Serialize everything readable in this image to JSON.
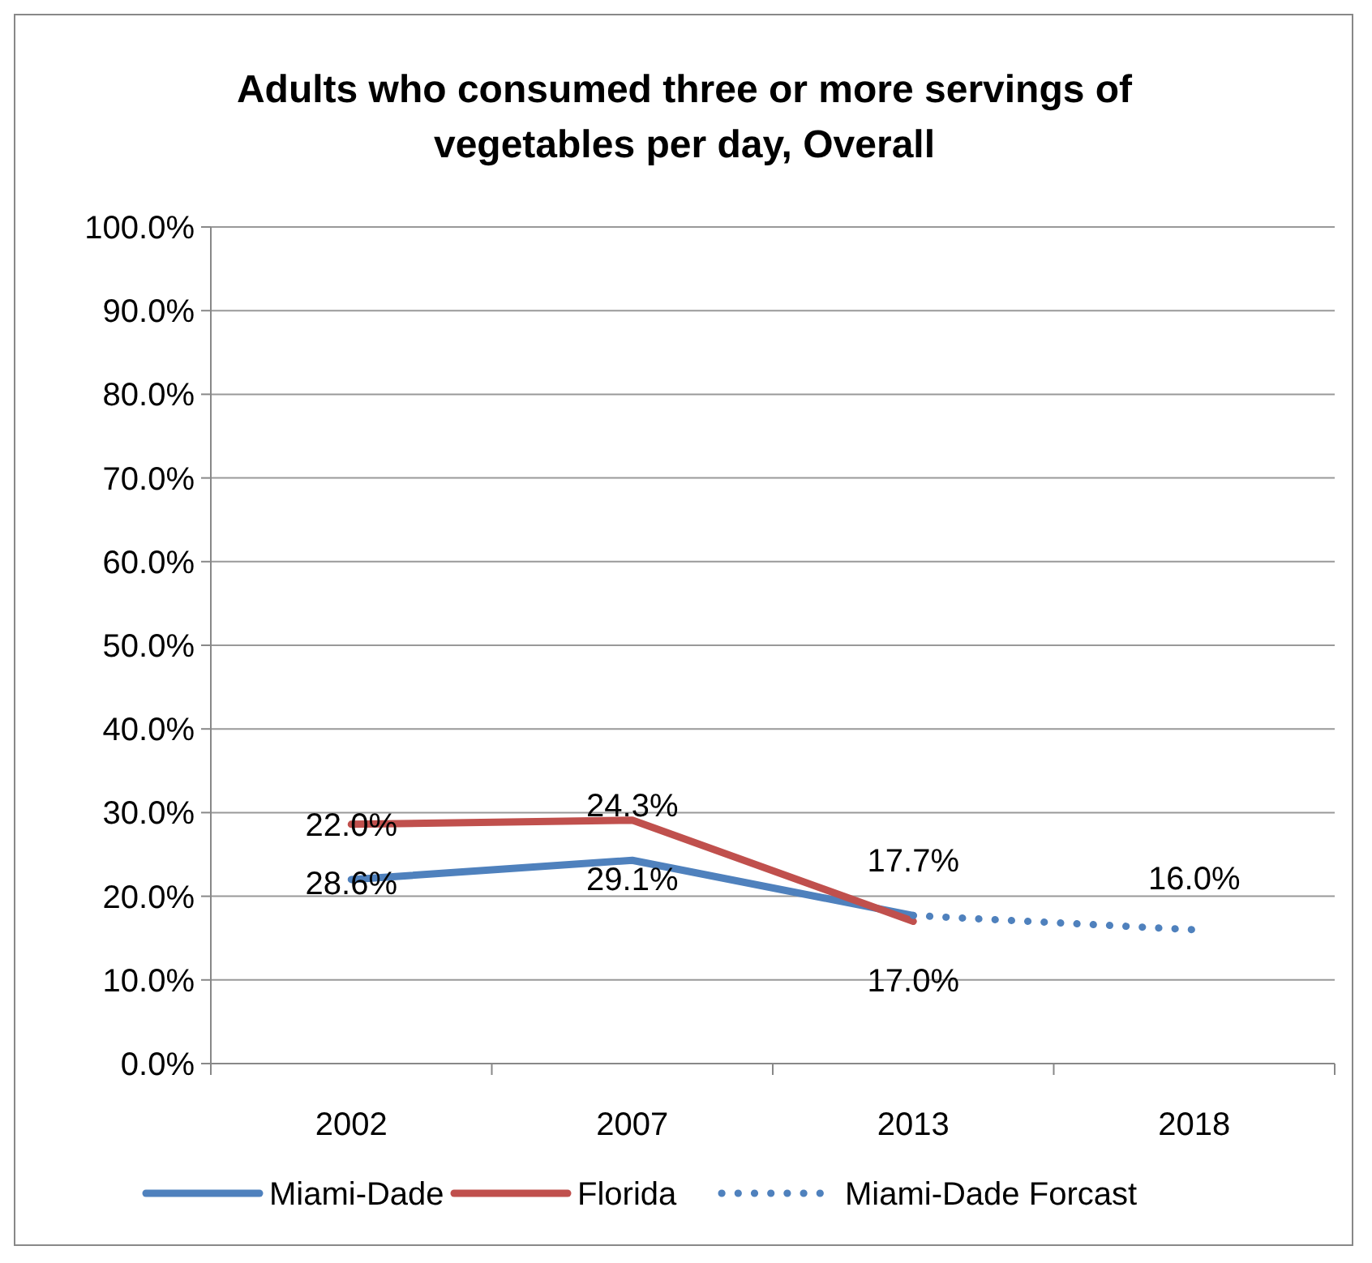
{
  "chart_data": {
    "type": "line",
    "title": "Adults who consumed three or more servings of vegetables per day, Overall",
    "categories": [
      "2002",
      "2007",
      "2013",
      "2018"
    ],
    "series": [
      {
        "name": "Miami-Dade",
        "color": "#4f81bd",
        "values": [
          22.0,
          24.3,
          17.7,
          null
        ],
        "value_labels": [
          "22.0%",
          "24.3%",
          "17.7%",
          null
        ]
      },
      {
        "name": "Florida",
        "color": "#c0504d",
        "values": [
          28.6,
          29.1,
          17.0,
          null
        ],
        "value_labels": [
          "28.6%",
          "29.1%",
          "17.0%",
          null
        ]
      },
      {
        "name": "Miami-Dade Forcast",
        "color": "#4f81bd",
        "values": [
          null,
          null,
          17.7,
          16.0
        ],
        "value_labels": [
          null,
          null,
          null,
          "16.0%"
        ],
        "line_style": "dotted"
      }
    ],
    "ylim": [
      0,
      100
    ],
    "yticks": [
      {
        "value": 0,
        "label": "0.0%"
      },
      {
        "value": 10,
        "label": "10.0%"
      },
      {
        "value": 20,
        "label": "20.0%"
      },
      {
        "value": 30,
        "label": "30.0%"
      },
      {
        "value": 40,
        "label": "40.0%"
      },
      {
        "value": 50,
        "label": "50.0%"
      },
      {
        "value": 60,
        "label": "60.0%"
      },
      {
        "value": 70,
        "label": "70.0%"
      },
      {
        "value": 80,
        "label": "80.0%"
      },
      {
        "value": 90,
        "label": "90.0%"
      },
      {
        "value": 100,
        "label": "100.0%"
      }
    ],
    "grid": "y",
    "legend": "bottom",
    "marker": "none",
    "line_style": "solid"
  }
}
